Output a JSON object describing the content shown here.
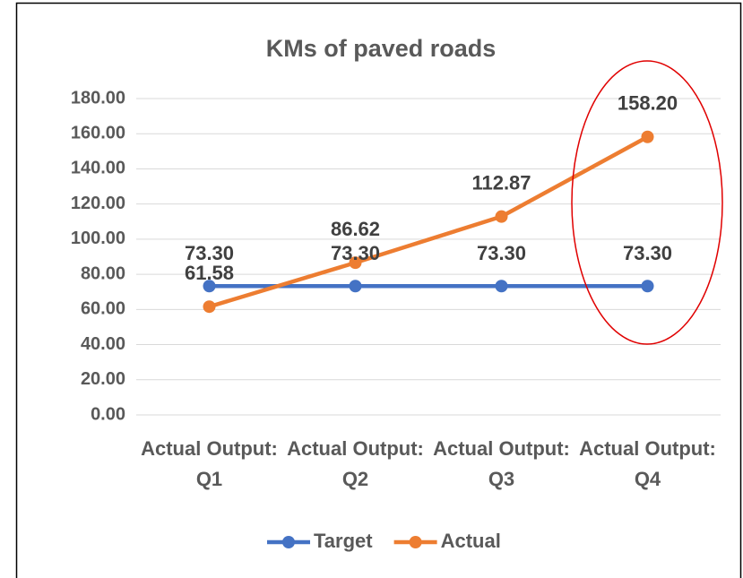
{
  "chart_data": {
    "type": "line",
    "title": "KMs of paved roads",
    "categories": [
      "Actual Output: Q1",
      "Actual Output: Q2",
      "Actual Output: Q3",
      "Actual Output: Q4"
    ],
    "series": [
      {
        "name": "Target",
        "color": "#4472c4",
        "values": [
          73.3,
          73.3,
          73.3,
          73.3
        ],
        "value_labels": [
          "73.30",
          "73.30",
          "73.30",
          "73.30"
        ]
      },
      {
        "name": "Actual",
        "color": "#ed7d31",
        "values": [
          61.58,
          86.62,
          112.87,
          158.2
        ],
        "value_labels": [
          "61.58",
          "86.62",
          "112.87",
          "158.20"
        ]
      }
    ],
    "ylim": [
      0,
      180
    ],
    "yticks": [
      {
        "value": 0,
        "label": "0.00"
      },
      {
        "value": 20,
        "label": "20.00"
      },
      {
        "value": 40,
        "label": "40.00"
      },
      {
        "value": 60,
        "label": "60.00"
      },
      {
        "value": 80,
        "label": "80.00"
      },
      {
        "value": 100,
        "label": "100.00"
      },
      {
        "value": 120,
        "label": "120.00"
      },
      {
        "value": 140,
        "label": "140.00"
      },
      {
        "value": 160,
        "label": "160.00"
      },
      {
        "value": 180,
        "label": "180.00"
      }
    ],
    "grid": true,
    "legend": "bottom"
  }
}
